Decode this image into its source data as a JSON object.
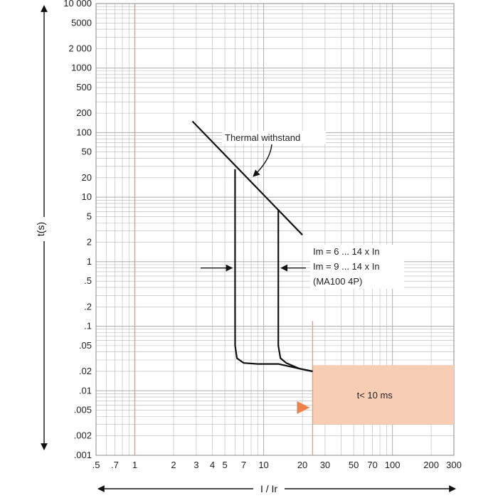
{
  "chart_data": {
    "type": "line",
    "title": "",
    "xlabel": "I / Ir",
    "ylabel": "t(s)",
    "xscale": "log",
    "yscale": "log",
    "xlim": [
      0.5,
      300
    ],
    "ylim": [
      0.001,
      10000
    ],
    "grid": true,
    "x_tick_labels": [
      ".5",
      ".7",
      "1",
      "2",
      "3",
      "4",
      "5",
      "7",
      "10",
      "20",
      "30",
      "50",
      "70",
      "100",
      "200",
      "300"
    ],
    "x_tick_values": [
      0.5,
      0.7,
      1,
      2,
      3,
      4,
      5,
      7,
      10,
      20,
      30,
      50,
      70,
      100,
      200,
      300
    ],
    "y_tick_labels": [
      "10 000",
      "5000",
      "2 000",
      "1000",
      "500",
      "200",
      "100",
      "50",
      "20",
      "10",
      "5",
      "2",
      "1",
      ".5",
      ".2",
      ".1",
      ".05",
      ".02",
      ".01",
      ".005",
      ".002",
      ".001"
    ],
    "y_tick_values": [
      10000,
      5000,
      2000,
      1000,
      500,
      200,
      100,
      50,
      20,
      10,
      5,
      2,
      1,
      0.5,
      0.2,
      0.1,
      0.05,
      0.02,
      0.01,
      0.005,
      0.002,
      0.001
    ],
    "series": [
      {
        "name": "Thermal withstand",
        "points": [
          [
            2.8,
            150
          ],
          [
            20,
            2.6
          ]
        ]
      },
      {
        "points": [
          [
            6,
            27
          ],
          [
            6,
            0.2
          ],
          [
            6.01,
            0.05
          ],
          [
            6.2,
            0.032
          ],
          [
            7,
            0.027
          ],
          [
            9,
            0.026
          ],
          [
            13,
            0.026
          ],
          [
            19,
            0.022
          ],
          [
            24,
            0.02
          ]
        ]
      },
      {
        "points": [
          [
            13,
            6.5
          ],
          [
            13,
            0.2
          ],
          [
            13.01,
            0.05
          ],
          [
            13.5,
            0.032
          ],
          [
            15,
            0.027
          ],
          [
            19,
            0.022
          ],
          [
            24,
            0.02
          ]
        ]
      }
    ],
    "shaded_region": {
      "x": [
        24,
        300
      ],
      "y": [
        0.003,
        0.025
      ],
      "label": "t<  10 ms",
      "color": "#f7cdb3"
    },
    "reference_line": {
      "x": 1,
      "color": "#e8a07a"
    },
    "marker_line": {
      "x": 24,
      "color": "#e8a07a"
    },
    "annotations": [
      {
        "text": "Thermal withstand"
      },
      {
        "text": "Im = 6 ... 14 x In"
      },
      {
        "text": "Im = 9 ... 14 x In"
      },
      {
        "text": "(MA100 4P)"
      }
    ],
    "colors": {
      "curve": "#111111",
      "grid": "#b5b5b5",
      "highlight": "#f0804a"
    }
  }
}
